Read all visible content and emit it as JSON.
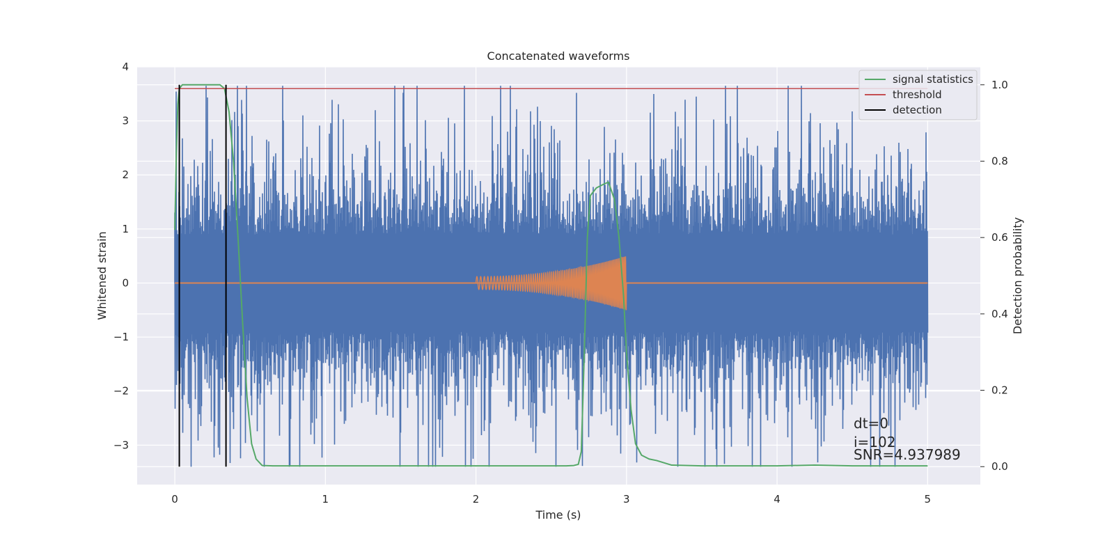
{
  "chart_data": {
    "type": "line",
    "title": "Concatenated waveforms",
    "xlabel": "Time (s)",
    "ylabel": "Whitened strain",
    "y2label": "Detection probability",
    "xlim": [
      -0.25,
      5.35
    ],
    "ylim": [
      -3.73,
      4.0
    ],
    "y2lim": [
      -0.047,
      1.047
    ],
    "xticks": [
      0,
      1,
      2,
      3,
      4,
      5
    ],
    "yticks": [
      -3,
      -2,
      -1,
      0,
      1,
      2,
      3,
      4
    ],
    "y2ticks": [
      0.0,
      0.2,
      0.4,
      0.6,
      0.8,
      1.0
    ],
    "grid": true,
    "legend": {
      "position": "top-right",
      "entries": [
        {
          "name": "signal statistics",
          "color": "#55a868"
        },
        {
          "name": "threshold",
          "color": "#c44e52"
        },
        {
          "name": "detection",
          "color": "#000000"
        }
      ]
    },
    "colors": {
      "strain": "#4c72b0",
      "injected": "#dd8452",
      "signal_statistics": "#55a868",
      "threshold": "#c44e52",
      "detection": "#000000",
      "plot_bg": "#eaeaf2"
    },
    "strain": {
      "t_range": [
        0,
        5
      ],
      "envelope_max": 3.65,
      "envelope_min": -3.4
    },
    "injected_chirp": {
      "t_start": 2.0,
      "t_end": 3.0,
      "amplitude_start": 0.12,
      "amplitude_end": 0.5
    },
    "signal_statistics": {
      "t": [
        0,
        0.01,
        0.02,
        0.03,
        0.05,
        0.1,
        0.2,
        0.3,
        0.33,
        0.36,
        0.39,
        0.42,
        0.45,
        0.48,
        0.51,
        0.54,
        0.58,
        0.65,
        1.0,
        2.0,
        2.5,
        2.6,
        2.65,
        2.68,
        2.7,
        2.72,
        2.74,
        2.76,
        2.8,
        2.85,
        2.88,
        2.92,
        2.95,
        2.98,
        3.0,
        3.03,
        3.06,
        3.1,
        3.15,
        3.2,
        3.3,
        3.5,
        4.0,
        4.25,
        4.5,
        5.0
      ],
      "y": [
        0.62,
        0.82,
        0.95,
        0.99,
        1.0,
        1.0,
        1.0,
        1.0,
        0.99,
        0.93,
        0.8,
        0.6,
        0.38,
        0.18,
        0.06,
        0.02,
        0.003,
        0.002,
        0.002,
        0.002,
        0.002,
        0.002,
        0.003,
        0.006,
        0.04,
        0.3,
        0.6,
        0.71,
        0.73,
        0.74,
        0.745,
        0.7,
        0.6,
        0.45,
        0.3,
        0.15,
        0.06,
        0.03,
        0.02,
        0.016,
        0.004,
        0.002,
        0.002,
        0.004,
        0.002,
        0.002
      ]
    },
    "threshold": {
      "t": [
        0,
        5
      ],
      "value": 0.99
    },
    "detections": [
      0.03,
      0.34
    ],
    "annotations": [
      "dt=0",
      "i=102",
      "SNR=4.937989"
    ]
  }
}
